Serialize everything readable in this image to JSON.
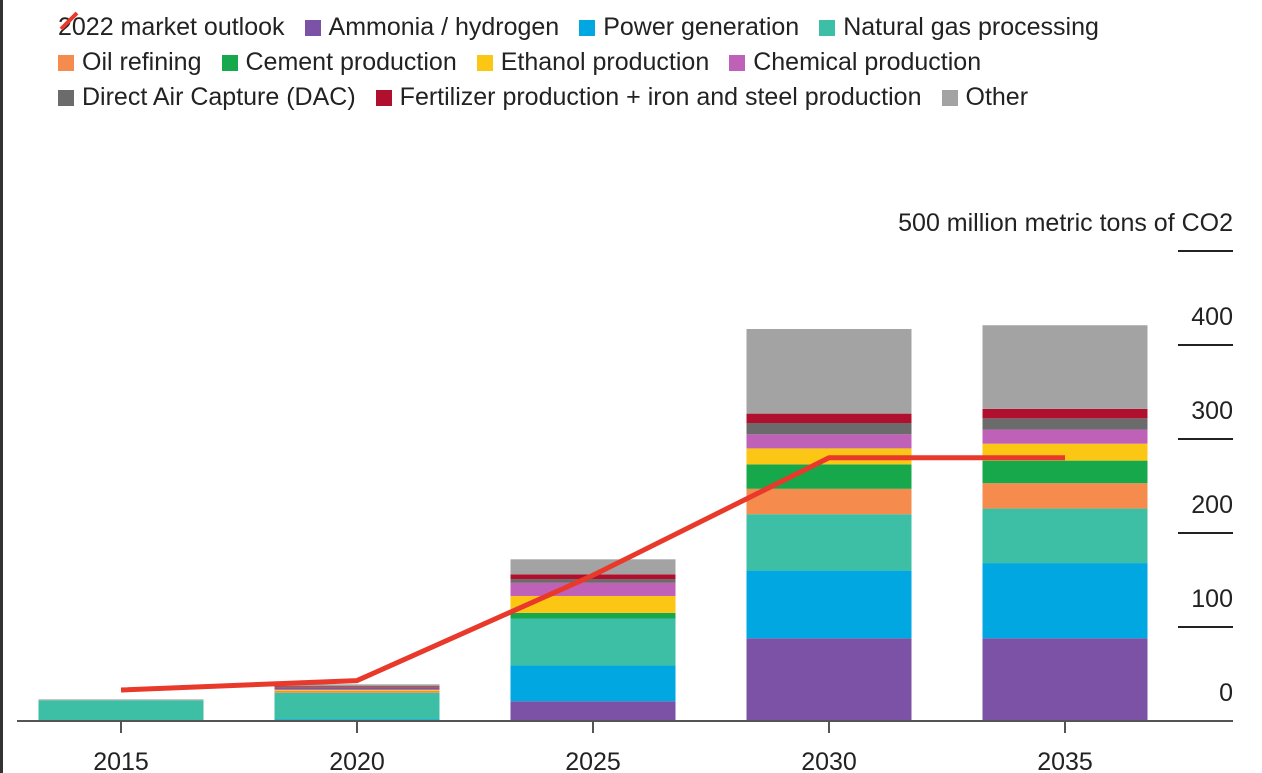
{
  "chart_data": {
    "type": "bar",
    "stacked": true,
    "categories": [
      "2015",
      "2020",
      "2025",
      "2030",
      "2035"
    ],
    "ylim": [
      0,
      500
    ],
    "yticks": [
      0,
      100,
      200,
      300,
      400,
      {
        "value": 500,
        "label": "500 million metric tons of CO2"
      }
    ],
    "line": {
      "name": "2022 market outlook",
      "color": "#e8392b",
      "values": [
        33,
        43,
        155,
        280,
        280
      ]
    },
    "series": [
      {
        "name": "Ammonia / hydrogen",
        "color": "#7b52a6",
        "values": [
          0,
          1,
          21,
          88,
          88
        ]
      },
      {
        "name": "Power generation",
        "color": "#00a7e1",
        "values": [
          0,
          1,
          38,
          72,
          80
        ]
      },
      {
        "name": "Natural gas processing",
        "color": "#3dbfa6",
        "values": [
          22,
          28,
          50,
          60,
          58
        ]
      },
      {
        "name": "Oil refining",
        "color": "#f58b4c",
        "values": [
          0,
          2,
          0,
          27,
          27
        ]
      },
      {
        "name": "Cement production",
        "color": "#17a84b",
        "values": [
          0,
          0,
          6,
          26,
          24
        ]
      },
      {
        "name": "Ethanol production",
        "color": "#fcc614",
        "values": [
          0,
          1,
          18,
          17,
          18
        ]
      },
      {
        "name": "Chemical production",
        "color": "#c061b8",
        "values": [
          0,
          1,
          14,
          15,
          15
        ]
      },
      {
        "name": "Direct Air Capture (DAC)",
        "color": "#6b6b6b",
        "values": [
          0,
          2,
          4,
          12,
          12
        ]
      },
      {
        "name": "Fertilizer production + iron and steel production",
        "color": "#b0102e",
        "values": [
          0,
          1,
          5,
          10,
          10
        ]
      },
      {
        "name": "Other",
        "color": "#a3a3a3",
        "values": [
          1,
          2,
          16,
          90,
          89
        ]
      }
    ]
  }
}
